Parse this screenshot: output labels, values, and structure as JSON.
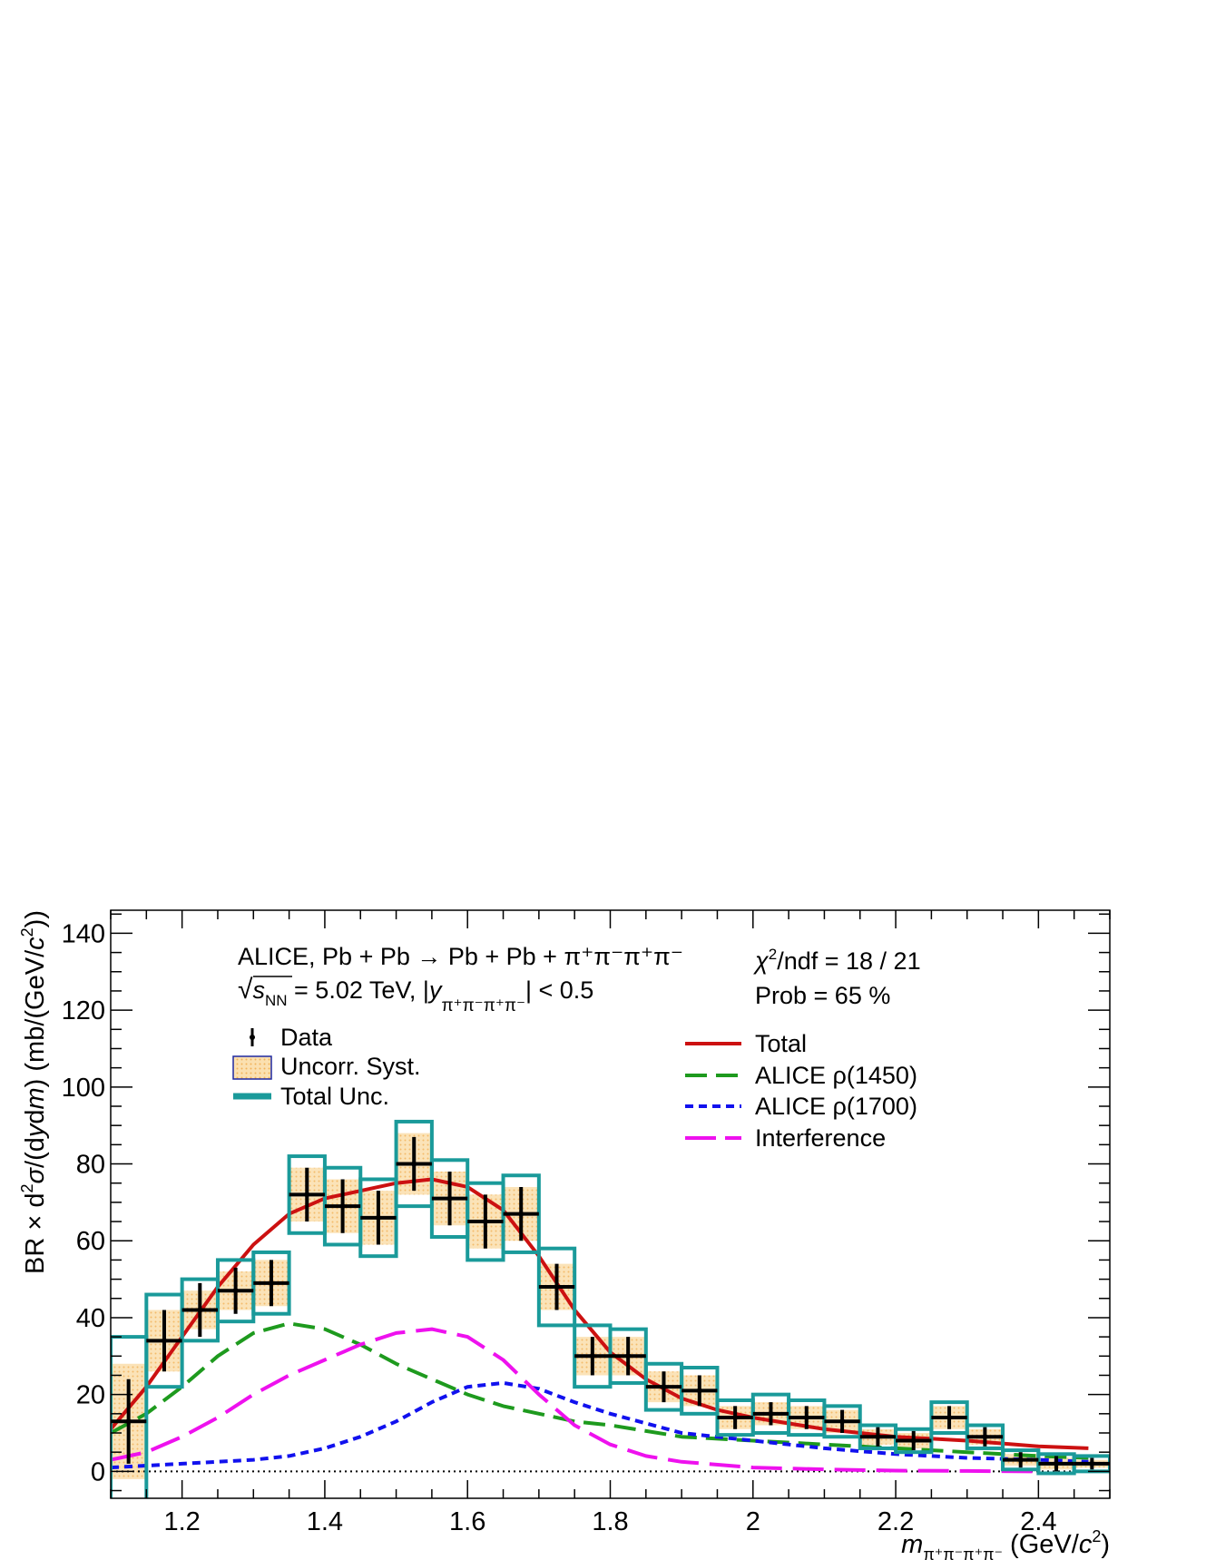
{
  "chart_data": {
    "type": "scatter",
    "xlim": [
      1.1,
      2.5
    ],
    "ylim": [
      -7,
      146
    ],
    "x_ticks": [
      1.2,
      1.4,
      1.6,
      1.8,
      2.0,
      2.2,
      2.4
    ],
    "x_tick_labels": [
      "1.2",
      "1.4",
      "1.6",
      "1.8",
      "2",
      "2.2",
      "2.4"
    ],
    "y_ticks": [
      0,
      20,
      40,
      60,
      80,
      100,
      120,
      140
    ],
    "y_tick_labels": [
      "0",
      "20",
      "40",
      "60",
      "80",
      "100",
      "120",
      "140"
    ],
    "xlabel": {
      "m": "m",
      "sub": "π⁺π⁻π⁺π⁻",
      "unit_open": " (GeV/",
      "c": "c",
      "sup": "2",
      "unit_close": ")"
    },
    "ylabel": {
      "pre": "BR × d",
      "sup": "2",
      "sigma": "σ",
      "mid": "/(d",
      "y": "y",
      "d": "d",
      "m": "m",
      "post": ") (mb/(GeV/",
      "c": "c",
      "sup2": "2",
      "end": "))"
    },
    "annotations": {
      "line1": "ALICE, Pb + Pb → Pb + Pb + π⁺π⁻π⁺π⁻",
      "sqrt": "√",
      "s": "s",
      "nn": "NN",
      "energy": " = 5.02 TeV, |",
      "y": "y",
      "ysub": "π⁺π⁻π⁺π⁻",
      "cut": "| < 0.5",
      "chi_symbol": "χ",
      "chi_sup": "2",
      "chi_rest": "/ndf = 18 / 21",
      "prob": "Prob = 65 %"
    },
    "legend_left": [
      "Data",
      "Uncorr. Syst.",
      "Total Unc."
    ],
    "legend_right": [
      "Total",
      "ALICE ρ(1450)",
      "ALICE ρ(1700)",
      "Interference"
    ],
    "colors": {
      "data": "#000000",
      "syst_fill": "#f7c982",
      "syst_edge": "#1e28a0",
      "total_unc": "#1a9a9a",
      "total": "#cc1111",
      "rho1450": "#1e9a1e",
      "rho1700": "#1111ee",
      "interference": "#ee11ee"
    },
    "bin_half_width": 0.025,
    "points": [
      {
        "x": 1.125,
        "y": 13,
        "stat": 11,
        "syst": 15,
        "tot": 22
      },
      {
        "x": 1.175,
        "y": 34,
        "stat": 8,
        "syst": 8,
        "tot": 12
      },
      {
        "x": 1.225,
        "y": 42,
        "stat": 7,
        "syst": 5,
        "tot": 8
      },
      {
        "x": 1.275,
        "y": 47,
        "stat": 6,
        "syst": 5,
        "tot": 8
      },
      {
        "x": 1.325,
        "y": 49,
        "stat": 6,
        "syst": 6,
        "tot": 8
      },
      {
        "x": 1.375,
        "y": 72,
        "stat": 7,
        "syst": 7,
        "tot": 10
      },
      {
        "x": 1.425,
        "y": 69,
        "stat": 7,
        "syst": 7,
        "tot": 10
      },
      {
        "x": 1.475,
        "y": 66,
        "stat": 7,
        "syst": 7,
        "tot": 10
      },
      {
        "x": 1.525,
        "y": 80,
        "stat": 7,
        "syst": 8,
        "tot": 11
      },
      {
        "x": 1.575,
        "y": 71,
        "stat": 7,
        "syst": 7,
        "tot": 10
      },
      {
        "x": 1.625,
        "y": 65,
        "stat": 7,
        "syst": 7,
        "tot": 10
      },
      {
        "x": 1.675,
        "y": 67,
        "stat": 7,
        "syst": 7,
        "tot": 10
      },
      {
        "x": 1.725,
        "y": 48,
        "stat": 6,
        "syst": 6,
        "tot": 10
      },
      {
        "x": 1.775,
        "y": 30,
        "stat": 5,
        "syst": 5,
        "tot": 8
      },
      {
        "x": 1.825,
        "y": 30,
        "stat": 5,
        "syst": 5,
        "tot": 7
      },
      {
        "x": 1.875,
        "y": 22,
        "stat": 4,
        "syst": 4,
        "tot": 6
      },
      {
        "x": 1.925,
        "y": 21,
        "stat": 4,
        "syst": 4,
        "tot": 6
      },
      {
        "x": 1.975,
        "y": 14,
        "stat": 3,
        "syst": 3,
        "tot": 4.5
      },
      {
        "x": 2.025,
        "y": 15,
        "stat": 3,
        "syst": 3,
        "tot": 5
      },
      {
        "x": 2.075,
        "y": 14,
        "stat": 3,
        "syst": 3,
        "tot": 4.5
      },
      {
        "x": 2.125,
        "y": 13,
        "stat": 3,
        "syst": 3,
        "tot": 4
      },
      {
        "x": 2.175,
        "y": 9,
        "stat": 2.5,
        "syst": 2,
        "tot": 3
      },
      {
        "x": 2.225,
        "y": 8,
        "stat": 2.5,
        "syst": 2,
        "tot": 3
      },
      {
        "x": 2.275,
        "y": 14,
        "stat": 3,
        "syst": 3,
        "tot": 4
      },
      {
        "x": 2.325,
        "y": 9,
        "stat": 2.5,
        "syst": 2,
        "tot": 3
      },
      {
        "x": 2.375,
        "y": 3,
        "stat": 2,
        "syst": 1.5,
        "tot": 2.5
      },
      {
        "x": 2.425,
        "y": 2,
        "stat": 2,
        "syst": 1.5,
        "tot": 2.5
      },
      {
        "x": 2.475,
        "y": 2,
        "stat": 1.5,
        "syst": 1,
        "tot": 2
      }
    ],
    "series": [
      {
        "name": "Total",
        "style": "solid",
        "x": [
          1.1,
          1.15,
          1.2,
          1.25,
          1.3,
          1.35,
          1.4,
          1.45,
          1.5,
          1.55,
          1.6,
          1.65,
          1.7,
          1.75,
          1.8,
          1.85,
          1.9,
          1.95,
          2.0,
          2.1,
          2.2,
          2.3,
          2.4,
          2.47
        ],
        "y": [
          11,
          22,
          35,
          48,
          59,
          67,
          71,
          73,
          75,
          76,
          74,
          68,
          56,
          42,
          31,
          24,
          19,
          16,
          14,
          11,
          9,
          8,
          6.5,
          6
        ]
      },
      {
        "name": "ALICE ρ(1450)",
        "style": "dash",
        "x": [
          1.1,
          1.15,
          1.2,
          1.25,
          1.3,
          1.35,
          1.4,
          1.45,
          1.5,
          1.55,
          1.6,
          1.65,
          1.7,
          1.75,
          1.8,
          1.9,
          2.0,
          2.1,
          2.2,
          2.3,
          2.4,
          2.47
        ],
        "y": [
          10,
          15,
          22,
          30,
          36,
          38.5,
          37,
          33,
          28,
          24,
          20,
          17,
          15,
          13,
          12,
          9,
          8,
          7,
          6,
          5,
          4,
          3.5
        ]
      },
      {
        "name": "ALICE ρ(1700)",
        "style": "dot",
        "x": [
          1.1,
          1.2,
          1.3,
          1.35,
          1.4,
          1.45,
          1.5,
          1.55,
          1.6,
          1.65,
          1.7,
          1.75,
          1.8,
          1.9,
          2.0,
          2.1,
          2.2,
          2.3,
          2.4,
          2.47
        ],
        "y": [
          1,
          2,
          3,
          4,
          6,
          9,
          13,
          18,
          22,
          23,
          21.5,
          18,
          15,
          10,
          8,
          6,
          4.5,
          3.5,
          3,
          2.5
        ]
      },
      {
        "name": "Interference",
        "style": "longdash",
        "x": [
          1.1,
          1.15,
          1.2,
          1.25,
          1.3,
          1.35,
          1.4,
          1.45,
          1.5,
          1.55,
          1.6,
          1.65,
          1.7,
          1.75,
          1.8,
          1.85,
          1.9,
          2.0,
          2.1,
          2.2,
          2.3,
          2.4
        ],
        "y": [
          3,
          5,
          9,
          14,
          20,
          25,
          29,
          33,
          36,
          37,
          35,
          29,
          20,
          12,
          7,
          4,
          2.5,
          1,
          0.5,
          0.2,
          0.1,
          0
        ]
      }
    ]
  }
}
